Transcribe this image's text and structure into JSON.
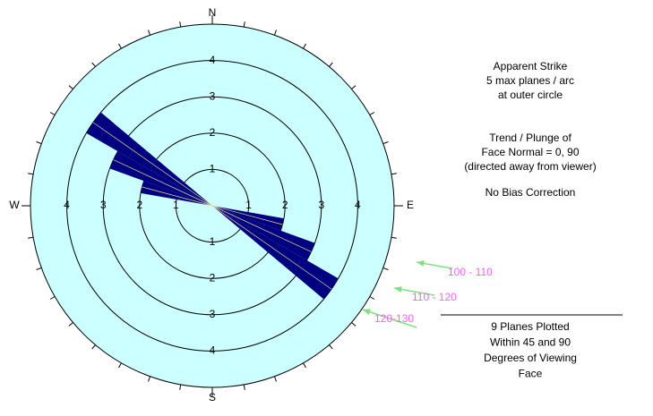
{
  "chart_data": {
    "type": "rose",
    "compass_labels": [
      "N",
      "E",
      "S",
      "W"
    ],
    "rlim": [
      0,
      5
    ],
    "rticks": [
      1,
      2,
      3,
      4
    ],
    "bins": [
      100,
      110,
      120,
      130
    ],
    "categories": [
      "100 - 110",
      "110 - 120",
      "120-130"
    ],
    "values": [
      2,
      3,
      4
    ],
    "bidirectional": true,
    "color": "#000080",
    "background": "#ccffff",
    "arrow_color": "#80e080",
    "label_color": "#ee66ee",
    "notes": [
      "Apparent Strike",
      "5 max planes / arc",
      "at outer circle",
      "Trend / Plunge of",
      "Face Normal =    0, 90",
      "(directed away from viewer)",
      "No Bias Correction"
    ],
    "footer": [
      "9 Planes Plotted",
      "Within 45 and 90",
      "Degrees of Viewing",
      "Face"
    ]
  }
}
